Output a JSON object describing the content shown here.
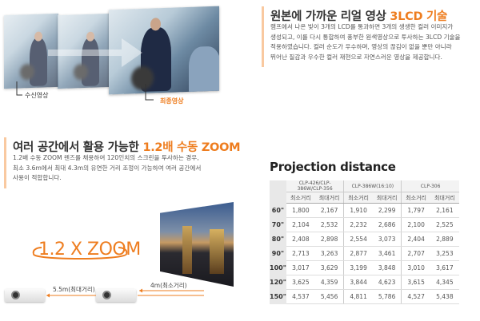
{
  "lcd_section": {
    "title_prefix": "원본에 가까운 리얼 영상 ",
    "title_accent": "3LCD 기술",
    "body_lines": [
      "램프에서 나온 빛이 3개의 LCD를 통과하면 3개의 생생한 컬러 이미지가",
      "생성되고, 이를 다시 통합하여 풍부한 원색영상으로 투사하는 3LCD 기술을",
      "적용하였습니다. 컬러 순도가 우수하며, 영상의 끊김이 없을 뿐만 아니라",
      "뛰어난 질감과 우수한 컬러 재현으로 자연스러운 영상을 제공합니다."
    ],
    "label_input": "수신영상",
    "label_final": "최종영상"
  },
  "zoom_section": {
    "title_prefix": "여러 공간에서 활용 가능한 ",
    "title_accent": "1.2배 수동 ZOOM",
    "body_lines": [
      "1.2배 수동 ZOOM 렌즈를 채용하여 120인치의 스크린을 투사하는 경우,",
      "최소 3.6m에서 최대 4.3m의 유연한 거리 조정이 가능하여 여러 공간에서",
      "사용이 적합합니다."
    ],
    "zoom_graphic": "1.2 X ZOOM",
    "max_distance": "5.5m(최대거리)",
    "min_distance": "4m(최소거리)"
  },
  "projection": {
    "title": "Projection distance",
    "models": [
      "CLP-426/CLP-386W/CLP-356",
      "CLP-386W(16:10)",
      "CLP-306"
    ],
    "sub_headers": [
      "최소거리",
      "최대거리"
    ],
    "rows": [
      {
        "size": "60\"",
        "values": [
          "1,800",
          "2,167",
          "1,910",
          "2,299",
          "1,797",
          "2,161"
        ]
      },
      {
        "size": "70\"",
        "values": [
          "2,104",
          "2,532",
          "2,232",
          "2,686",
          "2,100",
          "2,525"
        ]
      },
      {
        "size": "80\"",
        "values": [
          "2,408",
          "2,898",
          "2,554",
          "3,073",
          "2,404",
          "2,889"
        ]
      },
      {
        "size": "90\"",
        "values": [
          "2,713",
          "3,263",
          "2,877",
          "3,461",
          "2,707",
          "3,253"
        ]
      },
      {
        "size": "100\"",
        "values": [
          "3,017",
          "3,629",
          "3,199",
          "3,848",
          "3,010",
          "3,617"
        ]
      },
      {
        "size": "120\"",
        "values": [
          "3,625",
          "4,359",
          "3,844",
          "4,623",
          "3,615",
          "4,345"
        ]
      },
      {
        "size": "150\"",
        "values": [
          "4,537",
          "5,456",
          "4,811",
          "5,786",
          "4,527",
          "5,438"
        ]
      }
    ]
  },
  "colors": {
    "accent": "#ee7d1f",
    "accent_bar": "#f9c9a0"
  }
}
